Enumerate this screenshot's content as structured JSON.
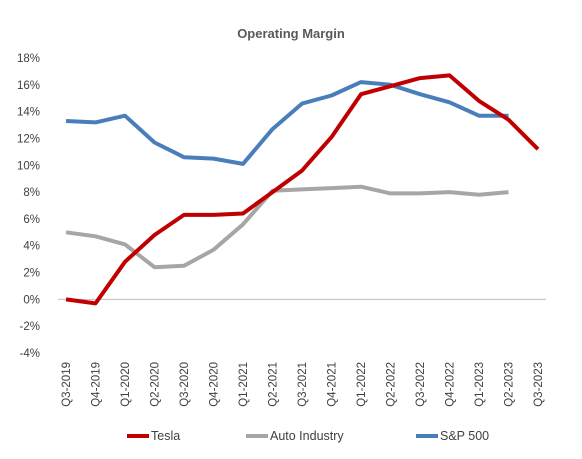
{
  "chart_data": {
    "type": "line",
    "title": "Operating Margin",
    "xlabel": "",
    "ylabel": "",
    "ylim": [
      -4,
      18
    ],
    "ytick_step": 2,
    "ytick_format": "percent",
    "grid": false,
    "legend_position": "bottom",
    "categories": [
      "Q3-2019",
      "Q4-2019",
      "Q1-2020",
      "Q2-2020",
      "Q3-2020",
      "Q4-2020",
      "Q1-2021",
      "Q2-2021",
      "Q3-2021",
      "Q4-2021",
      "Q1-2022",
      "Q2-2022",
      "Q3-2022",
      "Q4-2022",
      "Q1-2023",
      "Q2-2023",
      "Q3-2023"
    ],
    "series": [
      {
        "name": "Tesla",
        "color": "#c00000",
        "values": [
          0.0,
          -0.3,
          2.8,
          4.8,
          6.3,
          6.3,
          6.4,
          8.0,
          9.6,
          12.1,
          15.3,
          15.9,
          16.5,
          16.7,
          14.8,
          13.4,
          11.2
        ]
      },
      {
        "name": "Auto Industry",
        "color": "#a6a6a6",
        "values": [
          5.0,
          4.7,
          4.1,
          2.4,
          2.5,
          3.7,
          5.6,
          8.1,
          8.2,
          8.3,
          8.4,
          7.9,
          7.9,
          8.0,
          7.8,
          8.0,
          null
        ]
      },
      {
        "name": "S&P 500",
        "color": "#4a7ebb",
        "values": [
          13.3,
          13.2,
          13.7,
          11.7,
          10.6,
          10.5,
          10.1,
          12.7,
          14.6,
          15.2,
          16.2,
          16.0,
          15.3,
          14.7,
          13.7,
          13.7,
          null
        ]
      }
    ]
  }
}
